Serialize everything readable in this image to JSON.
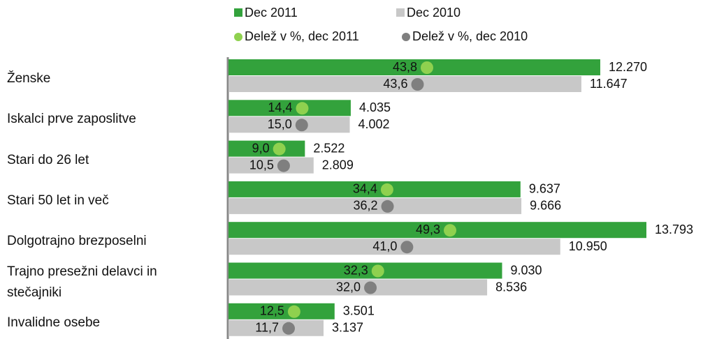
{
  "chart_data": {
    "type": "bar",
    "orientation": "horizontal",
    "categories": [
      "Ženske",
      "Iskalci prve zaposlitve",
      "Stari do 26 let",
      "Stari 50 let in več",
      "Dolgotrajno brezposelni",
      "Trajno presežni delavci in stečajniki",
      "Invalidne osebe"
    ],
    "series": [
      {
        "name": "Dec 2011",
        "color": "#33a23c",
        "values": [
          12270,
          4035,
          2522,
          9637,
          13793,
          9030,
          3501
        ],
        "value_labels": [
          "12.270",
          "4.035",
          "2.522",
          "9.637",
          "13.793",
          "9.030",
          "3.501"
        ]
      },
      {
        "name": "Dec 2010",
        "color": "#c8c8c8",
        "values": [
          11647,
          4002,
          2809,
          9666,
          10950,
          8536,
          3137
        ],
        "value_labels": [
          "11.647",
          "4.002",
          "2.809",
          "9.666",
          "10.950",
          "8.536",
          "3.137"
        ]
      }
    ],
    "share_series": [
      {
        "name": "Delež v %, dec 2011",
        "color": "#8fd14f",
        "values": [
          43.8,
          14.4,
          9.0,
          34.4,
          49.3,
          32.3,
          12.5
        ],
        "value_labels": [
          "43,8",
          "14,4",
          "9,0",
          "34,4",
          "49,3",
          "32,3",
          "12,5"
        ]
      },
      {
        "name": "Delež v %, dec 2010",
        "color": "#7f7f7f",
        "values": [
          43.6,
          15.0,
          10.5,
          36.2,
          41.0,
          32.0,
          11.7
        ],
        "value_labels": [
          "43,6",
          "15,0",
          "10,5",
          "36,2",
          "41,0",
          "32,0",
          "11,7"
        ]
      }
    ]
  }
}
